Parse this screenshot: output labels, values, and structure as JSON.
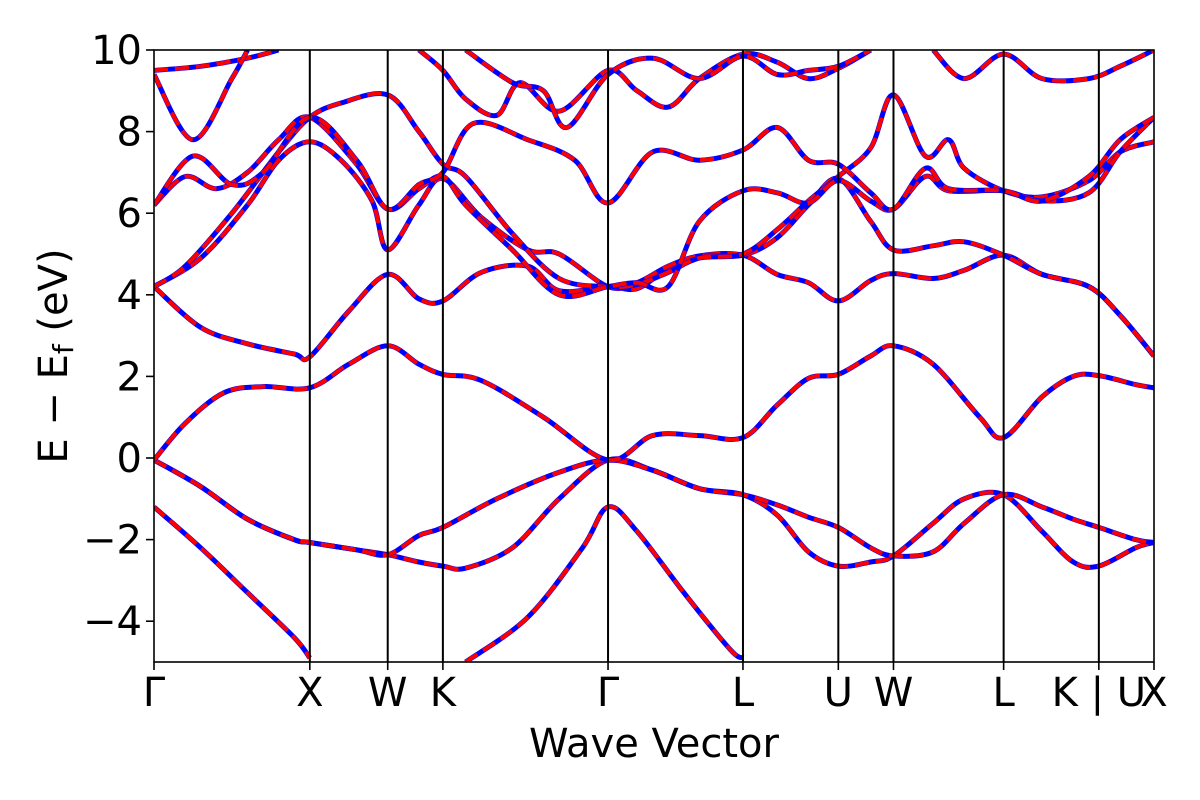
{
  "chart_data": {
    "type": "line",
    "title": "",
    "xlabel": "Wave Vector",
    "ylabel": {
      "main": "E − E",
      "sub": "f",
      "unit": " (eV)"
    },
    "ylim": [
      -5,
      10
    ],
    "yticks": [
      -4,
      -2,
      0,
      2,
      4,
      6,
      8,
      10
    ],
    "ytick_labels": [
      "−4",
      "−2",
      "0",
      "2",
      "4",
      "6",
      "8",
      "10"
    ],
    "x": [
      0,
      1,
      1.5,
      1.854,
      2.914,
      3.78,
      4.392,
      4.746,
      5.453,
      6.064,
      6.418
    ],
    "xtick_labels": [
      "Γ",
      "X",
      "W",
      "K",
      "Γ",
      "L",
      "U",
      "W",
      "L",
      "K | U",
      "X"
    ],
    "xlim": [
      0,
      6.418
    ],
    "grid": false,
    "series_colors": [
      "#0000ff",
      "#ff0000"
    ],
    "series_styles": [
      "solid",
      "dashed"
    ],
    "series": [
      {
        "values": [
          [
            0,
            -1.2
          ],
          [
            0.3,
            -2.2
          ],
          [
            0.6,
            -3.3
          ],
          [
            0.9,
            -4.4
          ],
          [
            1.0,
            -4.9
          ]
        ]
      },
      {
        "values": [
          [
            0,
            -0.05
          ],
          [
            0.3,
            -0.7
          ],
          [
            0.6,
            -1.5
          ],
          [
            0.9,
            -2.0
          ],
          [
            1.0,
            -2.07
          ],
          [
            1.3,
            -2.25
          ],
          [
            1.5,
            -2.37
          ],
          [
            1.7,
            -2.55
          ],
          [
            1.854,
            -2.65
          ],
          [
            2.0,
            -2.7
          ],
          [
            2.3,
            -2.2
          ],
          [
            2.6,
            -1.0
          ],
          [
            2.914,
            -0.05
          ],
          [
            3.2,
            -0.3
          ],
          [
            3.5,
            -0.75
          ],
          [
            3.78,
            -0.9
          ],
          [
            4.0,
            -1.4
          ],
          [
            4.2,
            -2.3
          ],
          [
            4.392,
            -2.65
          ],
          [
            4.6,
            -2.55
          ],
          [
            4.746,
            -2.4
          ],
          [
            5.0,
            -1.6
          ],
          [
            5.2,
            -1.0
          ],
          [
            5.453,
            -0.9
          ],
          [
            5.7,
            -1.8
          ],
          [
            5.9,
            -2.55
          ],
          [
            6.064,
            -2.65
          ],
          [
            6.3,
            -2.2
          ],
          [
            6.418,
            -2.07
          ]
        ]
      },
      {
        "values": [
          [
            0,
            -0.05
          ],
          [
            0.3,
            -0.7
          ],
          [
            0.6,
            -1.5
          ],
          [
            0.9,
            -2.0
          ],
          [
            1.0,
            -2.07
          ],
          [
            1.3,
            -2.25
          ],
          [
            1.5,
            -2.37
          ],
          [
            1.7,
            -1.9
          ],
          [
            1.854,
            -1.7
          ],
          [
            2.2,
            -1.0
          ],
          [
            2.6,
            -0.35
          ],
          [
            2.914,
            -0.05
          ],
          [
            3.2,
            -0.3
          ],
          [
            3.5,
            -0.75
          ],
          [
            3.78,
            -0.9
          ],
          [
            4.0,
            -1.15
          ],
          [
            4.2,
            -1.45
          ],
          [
            4.392,
            -1.7
          ],
          [
            4.6,
            -2.2
          ],
          [
            4.746,
            -2.4
          ],
          [
            5.0,
            -2.3
          ],
          [
            5.2,
            -1.6
          ],
          [
            5.453,
            -0.9
          ],
          [
            5.7,
            -1.2
          ],
          [
            5.9,
            -1.5
          ],
          [
            6.064,
            -1.7
          ],
          [
            6.3,
            -2.0
          ],
          [
            6.418,
            -2.07
          ]
        ]
      },
      {
        "values": [
          [
            2.0,
            -5.0
          ],
          [
            2.4,
            -3.9
          ],
          [
            2.75,
            -2.2
          ],
          [
            2.914,
            -1.2
          ],
          [
            3.1,
            -1.8
          ],
          [
            3.4,
            -3.3
          ],
          [
            3.7,
            -4.7
          ],
          [
            3.78,
            -4.9
          ]
        ]
      },
      {
        "values": [
          [
            0,
            -0.05
          ],
          [
            0.2,
            0.85
          ],
          [
            0.45,
            1.6
          ],
          [
            0.7,
            1.75
          ],
          [
            1.0,
            1.72
          ],
          [
            1.25,
            2.3
          ],
          [
            1.5,
            2.75
          ],
          [
            1.7,
            2.3
          ],
          [
            1.854,
            2.05
          ],
          [
            2.1,
            1.9
          ],
          [
            2.5,
            1.0
          ],
          [
            2.914,
            -0.05
          ],
          [
            3.2,
            0.55
          ],
          [
            3.5,
            0.55
          ],
          [
            3.78,
            0.5
          ],
          [
            4.0,
            1.3
          ],
          [
            4.2,
            1.95
          ],
          [
            4.392,
            2.05
          ],
          [
            4.6,
            2.5
          ],
          [
            4.746,
            2.75
          ],
          [
            5.0,
            2.3
          ],
          [
            5.3,
            1.0
          ],
          [
            5.453,
            0.5
          ],
          [
            5.7,
            1.5
          ],
          [
            5.9,
            2.0
          ],
          [
            6.064,
            2.02
          ],
          [
            6.3,
            1.8
          ],
          [
            6.418,
            1.72
          ]
        ]
      },
      {
        "values": [
          [
            0,
            4.2
          ],
          [
            0.3,
            3.2
          ],
          [
            0.6,
            2.8
          ],
          [
            0.9,
            2.55
          ],
          [
            1.0,
            2.48
          ],
          [
            1.25,
            3.6
          ],
          [
            1.5,
            4.5
          ],
          [
            1.7,
            3.9
          ],
          [
            1.854,
            3.85
          ],
          [
            2.1,
            4.55
          ],
          [
            2.4,
            4.7
          ],
          [
            2.6,
            4.1
          ],
          [
            2.914,
            4.2
          ],
          [
            3.1,
            4.15
          ],
          [
            3.3,
            4.65
          ],
          [
            3.5,
            4.95
          ],
          [
            3.78,
            4.97
          ],
          [
            4.0,
            4.5
          ],
          [
            4.2,
            4.3
          ],
          [
            4.392,
            3.85
          ],
          [
            4.6,
            4.35
          ],
          [
            4.746,
            4.52
          ],
          [
            5.0,
            4.4
          ],
          [
            5.2,
            4.6
          ],
          [
            5.453,
            4.97
          ],
          [
            5.7,
            4.5
          ],
          [
            6.0,
            4.2
          ],
          [
            6.2,
            3.5
          ],
          [
            6.418,
            2.5
          ]
        ]
      },
      {
        "values": [
          [
            0,
            4.2
          ],
          [
            0.3,
            4.9
          ],
          [
            0.6,
            6.2
          ],
          [
            0.8,
            7.3
          ],
          [
            1.0,
            7.75
          ],
          [
            1.2,
            7.3
          ],
          [
            1.4,
            6.3
          ],
          [
            1.5,
            5.1
          ],
          [
            1.7,
            6.2
          ],
          [
            1.854,
            6.85
          ],
          [
            2.1,
            5.9
          ],
          [
            2.4,
            5.1
          ],
          [
            2.6,
            5.0
          ],
          [
            2.914,
            4.2
          ],
          [
            3.1,
            4.3
          ],
          [
            3.3,
            4.7
          ],
          [
            3.5,
            4.95
          ],
          [
            3.78,
            4.97
          ],
          [
            4.0,
            5.4
          ],
          [
            4.2,
            6.2
          ],
          [
            4.392,
            6.85
          ],
          [
            4.6,
            5.8
          ],
          [
            4.746,
            5.1
          ],
          [
            5.0,
            5.2
          ],
          [
            5.2,
            5.3
          ],
          [
            5.453,
            4.97
          ],
          [
            5.7,
            4.5
          ],
          [
            6.0,
            4.2
          ],
          [
            6.2,
            3.5
          ],
          [
            6.418,
            2.5
          ]
        ]
      },
      {
        "values": [
          [
            0,
            4.2
          ],
          [
            0.2,
            4.7
          ],
          [
            0.5,
            6.0
          ],
          [
            0.8,
            7.5
          ],
          [
            1.0,
            8.35
          ],
          [
            1.2,
            8.7
          ],
          [
            1.5,
            8.9
          ],
          [
            1.7,
            8.0
          ],
          [
            1.854,
            7.2
          ],
          [
            2.0,
            6.9
          ],
          [
            2.3,
            5.5
          ],
          [
            2.6,
            4.4
          ],
          [
            2.914,
            4.2
          ],
          [
            3.1,
            4.25
          ],
          [
            3.3,
            4.55
          ],
          [
            3.5,
            4.9
          ],
          [
            3.78,
            5.0
          ],
          [
            4.0,
            5.6
          ],
          [
            4.2,
            6.3
          ],
          [
            4.392,
            6.9
          ],
          [
            4.6,
            7.6
          ],
          [
            4.746,
            8.9
          ],
          [
            4.95,
            7.4
          ],
          [
            5.1,
            7.8
          ],
          [
            5.2,
            7.1
          ],
          [
            5.453,
            6.55
          ],
          [
            5.7,
            6.4
          ],
          [
            6.0,
            6.8
          ],
          [
            6.2,
            7.5
          ],
          [
            6.418,
            7.75
          ]
        ]
      },
      {
        "values": [
          [
            0,
            6.2
          ],
          [
            0.2,
            6.9
          ],
          [
            0.4,
            6.6
          ],
          [
            0.6,
            7.0
          ],
          [
            0.8,
            7.8
          ],
          [
            1.0,
            8.35
          ],
          [
            1.3,
            7.2
          ],
          [
            1.5,
            6.1
          ],
          [
            1.7,
            6.6
          ],
          [
            1.854,
            6.9
          ],
          [
            2.0,
            6.2
          ],
          [
            2.3,
            5.1
          ],
          [
            2.6,
            4.0
          ],
          [
            2.914,
            4.2
          ],
          [
            3.1,
            4.3
          ],
          [
            3.3,
            4.2
          ],
          [
            3.5,
            5.8
          ],
          [
            3.78,
            6.55
          ],
          [
            4.0,
            6.5
          ],
          [
            4.2,
            6.25
          ],
          [
            4.392,
            6.8
          ],
          [
            4.6,
            6.3
          ],
          [
            4.746,
            6.1
          ],
          [
            4.95,
            6.9
          ],
          [
            5.1,
            6.55
          ],
          [
            5.453,
            6.55
          ],
          [
            5.7,
            6.3
          ],
          [
            6.0,
            6.5
          ],
          [
            6.2,
            7.5
          ],
          [
            6.418,
            8.35
          ]
        ]
      },
      {
        "values": [
          [
            0,
            6.2
          ],
          [
            0.25,
            7.4
          ],
          [
            0.5,
            6.7
          ],
          [
            0.7,
            7.0
          ],
          [
            1.0,
            8.35
          ],
          [
            1.3,
            7.3
          ],
          [
            1.5,
            6.1
          ],
          [
            1.7,
            6.7
          ],
          [
            1.854,
            7.0
          ],
          [
            2.05,
            8.2
          ],
          [
            2.4,
            7.8
          ],
          [
            2.7,
            7.3
          ],
          [
            2.914,
            6.25
          ],
          [
            3.2,
            7.5
          ],
          [
            3.5,
            7.3
          ],
          [
            3.78,
            7.55
          ],
          [
            4.0,
            8.1
          ],
          [
            4.2,
            7.3
          ],
          [
            4.392,
            7.2
          ],
          [
            4.6,
            6.5
          ],
          [
            4.746,
            6.1
          ],
          [
            4.95,
            7.1
          ],
          [
            5.1,
            6.6
          ],
          [
            5.453,
            6.55
          ],
          [
            5.7,
            6.3
          ],
          [
            6.0,
            6.9
          ],
          [
            6.2,
            7.8
          ],
          [
            6.418,
            8.35
          ]
        ]
      },
      {
        "values": [
          [
            0,
            9.5
          ],
          [
            0.3,
            9.6
          ],
          [
            0.6,
            9.8
          ],
          [
            0.8,
            10.0
          ]
        ]
      },
      {
        "values": [
          [
            0,
            9.4
          ],
          [
            0.25,
            7.8
          ],
          [
            0.5,
            9.3
          ],
          [
            0.6,
            10.0
          ]
        ]
      },
      {
        "values": [
          [
            1.7,
            10.0
          ],
          [
            1.854,
            9.5
          ],
          [
            2.0,
            8.8
          ],
          [
            2.2,
            8.4
          ],
          [
            2.35,
            9.2
          ],
          [
            2.6,
            8.5
          ],
          [
            2.914,
            9.5
          ],
          [
            3.1,
            9.0
          ],
          [
            3.3,
            8.6
          ],
          [
            3.5,
            9.3
          ],
          [
            3.78,
            9.9
          ],
          [
            4.0,
            9.7
          ],
          [
            4.2,
            9.3
          ],
          [
            4.392,
            9.55
          ],
          [
            4.6,
            10.0
          ]
        ]
      },
      {
        "values": [
          [
            2.0,
            10.0
          ],
          [
            2.3,
            9.2
          ],
          [
            2.5,
            9.0
          ],
          [
            2.65,
            8.1
          ],
          [
            2.914,
            9.4
          ],
          [
            3.2,
            9.8
          ],
          [
            3.5,
            9.3
          ],
          [
            3.78,
            9.85
          ],
          [
            4.0,
            9.4
          ],
          [
            4.2,
            9.5
          ],
          [
            4.392,
            9.6
          ],
          [
            4.6,
            10.0
          ]
        ]
      },
      {
        "values": [
          [
            5.0,
            10.0
          ],
          [
            5.2,
            9.3
          ],
          [
            5.453,
            9.9
          ],
          [
            5.7,
            9.3
          ],
          [
            6.0,
            9.3
          ],
          [
            6.2,
            9.6
          ],
          [
            6.418,
            10.0
          ]
        ]
      }
    ]
  }
}
